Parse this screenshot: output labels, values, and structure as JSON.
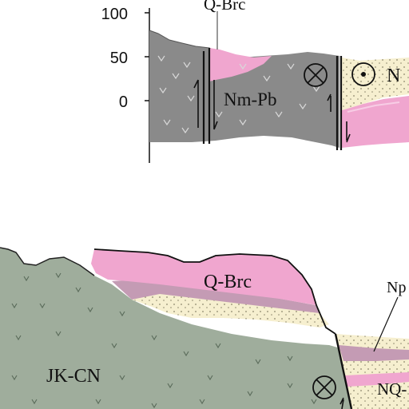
{
  "scale": {
    "ticks": [
      "100",
      "50",
      "0"
    ]
  },
  "upper_section": {
    "labels": {
      "q_brc": "Q-Brc",
      "nm_pb": "Nm-Pb",
      "n_partial": "N"
    }
  },
  "lower_section": {
    "labels": {
      "q_brc": "Q-Brc",
      "jk_cn": "JK-CN",
      "np_partial": "Np",
      "nq_partial": "NQ-"
    }
  },
  "colors": {
    "volcanic_gray": "#8a8a8a",
    "pink": "#f0a6cf",
    "mauve": "#c49bb4",
    "sand": "#f6efcf",
    "green_gray": "#9fad9c",
    "line": "#111111"
  },
  "symbols": [
    "fault-away-icon",
    "fault-toward-icon"
  ]
}
